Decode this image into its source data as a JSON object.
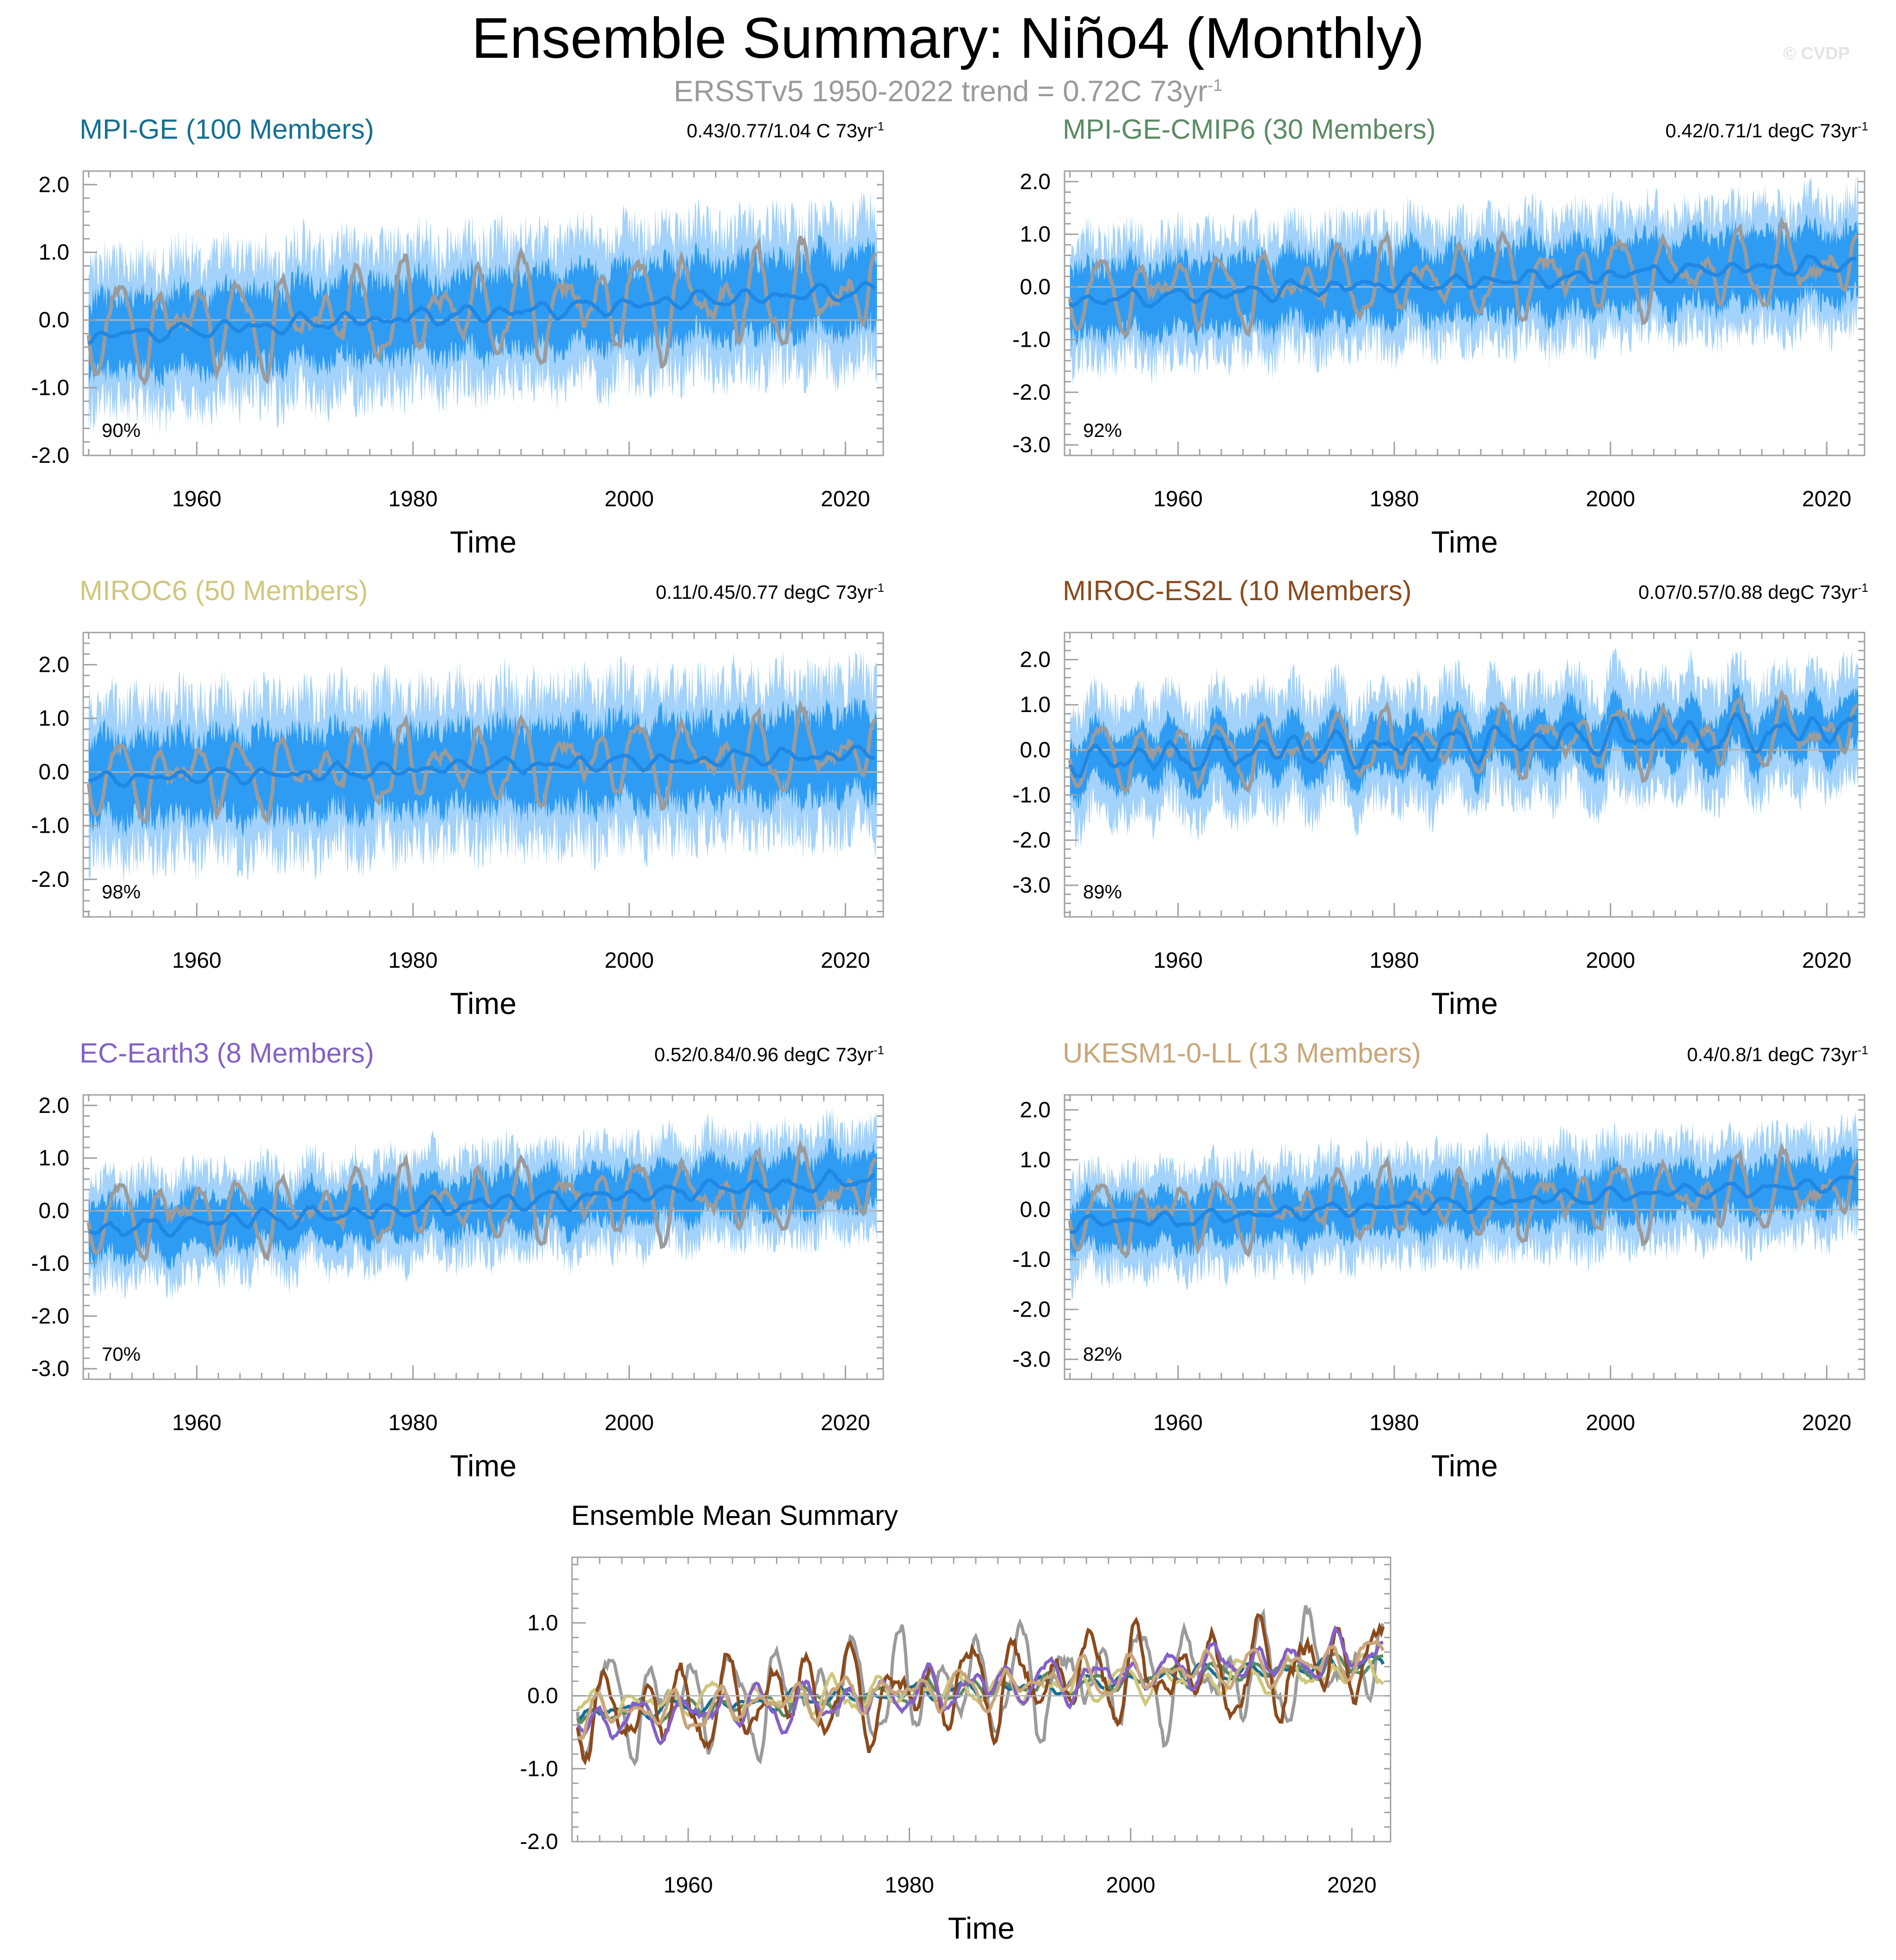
{
  "title": "Ensemble Summary: Niño4 (Monthly)",
  "subtitle": {
    "text": "ERSSTv5 1950-2022 trend = 0.72C 73yr",
    "exponent": "-1"
  },
  "watermark": "© CVDP",
  "colors": {
    "band_outer": "#a3d2fb",
    "band_inner": "#2f9cf3",
    "ens_mean": "#1f87e4",
    "obs": "#9b9b9b",
    "zero_line": "#b5b5b5",
    "axis": "#a0a0a0"
  },
  "chart_data": [
    {
      "type": "line",
      "id": "mpi-ge",
      "title": "MPI-GE (100 Members)",
      "title_color": "#156f93",
      "trend_text": "0.43/0.77/1.04 C 73yr",
      "trend_exp": "-1",
      "pct": "90%",
      "xlabel": "Time",
      "xlim": [
        1949.5,
        2023.5
      ],
      "xticks": [
        1960,
        1980,
        2000,
        2020
      ],
      "ylim": [
        -2.0,
        2.2
      ],
      "yticks": [
        -2.0,
        -1.0,
        0.0,
        1.0,
        2.0
      ],
      "ytick_labels": [
        "-2.0",
        "-1.0",
        "0.0",
        "1.0",
        "2.0"
      ],
      "mean_start": -0.25,
      "mean_end": 0.45,
      "inner_half": 0.55,
      "outer_half": 1.05,
      "noise": 0.22,
      "enso": 0.25,
      "seed": 11,
      "series": [
        {
          "name": "Ensemble mean",
          "color": "#1f87e4"
        },
        {
          "name": "ERSSTv5",
          "color": "#9b9b9b"
        }
      ]
    },
    {
      "type": "line",
      "id": "mpi-ge-cmip6",
      "title": "MPI-GE-CMIP6 (30 Members)",
      "title_color": "#5c8b64",
      "trend_text": "0.42/0.71/1 degC 73yr",
      "trend_exp": "-1",
      "pct": "92%",
      "xlabel": "Time",
      "xlim": [
        1949.5,
        2023.5
      ],
      "xticks": [
        1960,
        1980,
        2000,
        2020
      ],
      "ylim": [
        -3.2,
        2.2
      ],
      "yticks": [
        -3.0,
        -2.0,
        -1.0,
        0.0,
        1.0,
        2.0
      ],
      "ytick_labels": [
        "-3.0",
        "-2.0",
        "-1.0",
        "0.0",
        "1.0",
        "2.0"
      ],
      "mean_start": -0.25,
      "mean_end": 0.45,
      "inner_half": 0.65,
      "outer_half": 1.15,
      "noise": 0.24,
      "enso": 0.3,
      "seed": 23,
      "series": [
        {
          "name": "Ensemble mean",
          "color": "#1f87e4"
        },
        {
          "name": "ERSSTv5",
          "color": "#9b9b9b"
        }
      ]
    },
    {
      "type": "line",
      "id": "miroc6",
      "title": "MIROC6 (50 Members)",
      "title_color": "#cfc77c",
      "trend_text": "0.11/0.45/0.77 degC 73yr",
      "trend_exp": "-1",
      "pct": "98%",
      "xlabel": "Time",
      "xlim": [
        1949.5,
        2023.5
      ],
      "xticks": [
        1960,
        1980,
        2000,
        2020
      ],
      "ylim": [
        -2.7,
        2.6
      ],
      "yticks": [
        -2.0,
        -1.0,
        0.0,
        1.0,
        2.0
      ],
      "ytick_labels": [
        "-2.0",
        "-1.0",
        "0.0",
        "1.0",
        "2.0"
      ],
      "mean_start": -0.15,
      "mean_end": 0.35,
      "inner_half": 0.75,
      "outer_half": 1.4,
      "noise": 0.28,
      "enso": 0.3,
      "seed": 37,
      "series": [
        {
          "name": "Ensemble mean",
          "color": "#1f87e4"
        },
        {
          "name": "ERSSTv5",
          "color": "#9b9b9b"
        }
      ]
    },
    {
      "type": "line",
      "id": "miroc-es2l",
      "title": "MIROC-ES2L (10 Members)",
      "title_color": "#8c4a1b",
      "trend_text": "0.07/0.57/0.88 degC 73yr",
      "trend_exp": "-1",
      "pct": "89%",
      "xlabel": "Time",
      "xlim": [
        1949.5,
        2023.5
      ],
      "xticks": [
        1960,
        1980,
        2000,
        2020
      ],
      "ylim": [
        -3.7,
        2.6
      ],
      "yticks": [
        -3.0,
        -2.0,
        -1.0,
        0.0,
        1.0,
        2.0
      ],
      "ytick_labels": [
        "-3.0",
        "-2.0",
        "-1.0",
        "0.0",
        "1.0",
        "2.0"
      ],
      "mean_start": -0.2,
      "mean_end": 0.45,
      "inner_half": 0.55,
      "outer_half": 1.2,
      "noise": 0.25,
      "enso": 0.75,
      "seed": 53,
      "series": [
        {
          "name": "Ensemble mean",
          "color": "#1f87e4"
        },
        {
          "name": "ERSSTv5",
          "color": "#9b9b9b"
        }
      ]
    },
    {
      "type": "line",
      "id": "ec-earth3",
      "title": "EC-Earth3 (8 Members)",
      "title_color": "#8460c8",
      "trend_text": "0.52/0.84/0.96 degC 73yr",
      "trend_exp": "-1",
      "pct": "70%",
      "xlabel": "Time",
      "xlim": [
        1949.5,
        2023.5
      ],
      "xticks": [
        1960,
        1980,
        2000,
        2020
      ],
      "ylim": [
        -3.2,
        2.2
      ],
      "yticks": [
        -3.0,
        -2.0,
        -1.0,
        0.0,
        1.0,
        2.0
      ],
      "ytick_labels": [
        "-3.0",
        "-2.0",
        "-1.0",
        "0.0",
        "1.0",
        "2.0"
      ],
      "mean_start": -0.35,
      "mean_end": 0.6,
      "inner_half": 0.5,
      "outer_half": 0.95,
      "noise": 0.25,
      "enso": 0.35,
      "seed": 71,
      "series": [
        {
          "name": "Ensemble mean",
          "color": "#1f87e4"
        },
        {
          "name": "ERSSTv5",
          "color": "#9b9b9b"
        }
      ]
    },
    {
      "type": "line",
      "id": "ukesm1-0-ll",
      "title": "UKESM1-0-LL (13 Members)",
      "title_color": "#c9a67a",
      "trend_text": "0.4/0.8/1 degC 73yr",
      "trend_exp": "-1",
      "pct": "82%",
      "xlabel": "Time",
      "xlim": [
        1949.5,
        2023.5
      ],
      "xticks": [
        1960,
        1980,
        2000,
        2020
      ],
      "ylim": [
        -3.4,
        2.3
      ],
      "yticks": [
        -3.0,
        -2.0,
        -1.0,
        0.0,
        1.0,
        2.0
      ],
      "ytick_labels": [
        "-3.0",
        "-2.0",
        "-1.0",
        "0.0",
        "1.0",
        "2.0"
      ],
      "mean_start": -0.3,
      "mean_end": 0.55,
      "inner_half": 0.5,
      "outer_half": 1.0,
      "noise": 0.25,
      "enso": 0.3,
      "seed": 89,
      "series": [
        {
          "name": "Ensemble mean",
          "color": "#1f87e4"
        },
        {
          "name": "ERSSTv5",
          "color": "#9b9b9b"
        }
      ]
    },
    {
      "type": "line",
      "id": "ensemble-mean-summary",
      "title": "Ensemble Mean Summary",
      "title_color": "#000000",
      "xlabel": "Time",
      "xlim": [
        1949.5,
        2023.5
      ],
      "xticks": [
        1960,
        1980,
        2000,
        2020
      ],
      "ylim": [
        -2.0,
        1.9
      ],
      "yticks": [
        -2.0,
        -1.0,
        0.0,
        1.0
      ],
      "ytick_labels": [
        "-2.0",
        "-1.0",
        "0.0",
        "1.0"
      ],
      "series": [
        {
          "name": "ERSSTv5",
          "color": "#9b9b9b",
          "start": -0.1,
          "end": 0.4,
          "amp": 0.75,
          "seed": 5
        },
        {
          "name": "MPI-GE",
          "color": "#156f93",
          "start": -0.25,
          "end": 0.45,
          "amp": 0.12,
          "seed": 11
        },
        {
          "name": "MPI-GE-CMIP6",
          "color": "#5c8b64",
          "start": -0.25,
          "end": 0.45,
          "amp": 0.15,
          "seed": 23
        },
        {
          "name": "MIROC6",
          "color": "#cfc77c",
          "start": -0.15,
          "end": 0.35,
          "amp": 0.25,
          "seed": 37
        },
        {
          "name": "MIROC-ES2L",
          "color": "#8c4a1b",
          "start": -0.2,
          "end": 0.45,
          "amp": 0.65,
          "seed": 53
        },
        {
          "name": "EC-Earth3",
          "color": "#8460c8",
          "start": -0.35,
          "end": 0.6,
          "amp": 0.3,
          "seed": 71
        },
        {
          "name": "UKESM1-0-LL",
          "color": "#c9a67a",
          "start": -0.3,
          "end": 0.55,
          "amp": 0.28,
          "seed": 89
        }
      ]
    }
  ]
}
